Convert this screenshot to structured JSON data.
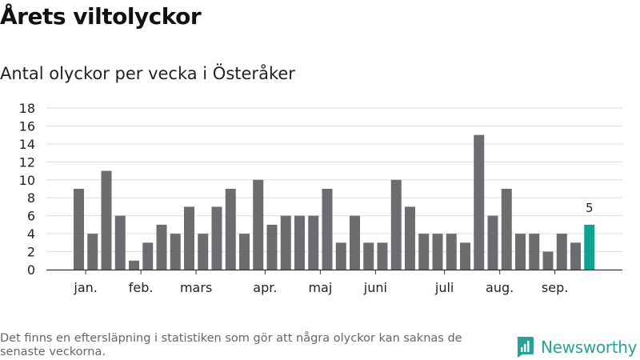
{
  "header": {
    "title": "Årets viltolyckor",
    "subtitle": "Antal olyckor per vecka i Österåker"
  },
  "footer": {
    "note": "Det finns en eftersläpning i statistiken som gör att några olyckor kan saknas de senaste veckorna.",
    "brand": "Newsworthy"
  },
  "colors": {
    "bar": "#6d6c71",
    "highlight": "#0ea293",
    "grid": "#dddddd",
    "axis": "#333333",
    "brand": "#2aa198"
  },
  "chart_data": {
    "type": "bar",
    "title": "",
    "xlabel": "",
    "ylabel": "",
    "ylim": [
      0,
      18
    ],
    "yticks": [
      "0",
      "2",
      "4",
      "6",
      "8",
      "10",
      "12",
      "14",
      "16",
      "18"
    ],
    "grid": true,
    "values": [
      9,
      4,
      11,
      6,
      1,
      3,
      5,
      4,
      7,
      4,
      7,
      9,
      4,
      10,
      5,
      6,
      6,
      6,
      9,
      3,
      6,
      3,
      3,
      10,
      7,
      4,
      4,
      4,
      3,
      15,
      6,
      9,
      4,
      4,
      2,
      4,
      3,
      5
    ],
    "highlight_index": 37,
    "highlight_label": "5",
    "month_labels": [
      {
        "label": "jan.",
        "bar": 0.5
      },
      {
        "label": "feb.",
        "bar": 4.5
      },
      {
        "label": "mars",
        "bar": 8.5
      },
      {
        "label": "apr.",
        "bar": 13.5
      },
      {
        "label": "maj",
        "bar": 17.5
      },
      {
        "label": "juni",
        "bar": 21.5
      },
      {
        "label": "juli",
        "bar": 26.5
      },
      {
        "label": "aug.",
        "bar": 30.5
      },
      {
        "label": "sep.",
        "bar": 34.5
      }
    ]
  }
}
